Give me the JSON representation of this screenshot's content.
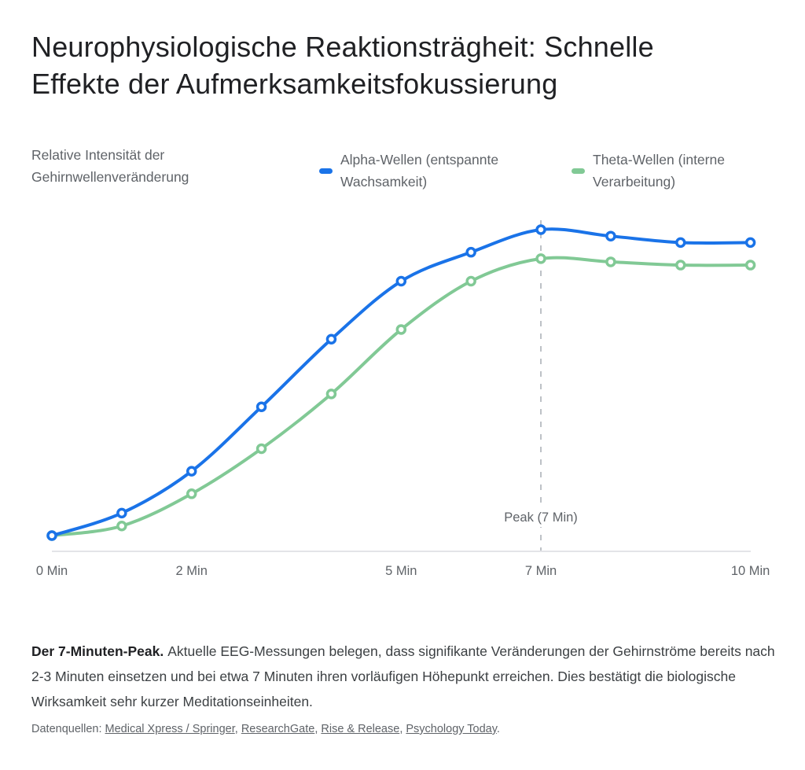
{
  "page": {
    "title": "Neurophysiologische Reaktionsträgheit: Schnelle Effekte der Aufmerksamkeitsfokussierung"
  },
  "chart": {
    "ylabel": "Relative Intensität der Gehirnwellenveränderung",
    "legend": [
      {
        "label": "Alpha-Wellen (entspannte Wachsamkeit)",
        "color": "#1a73e8"
      },
      {
        "label": "Theta-Wellen (interne Verarbeitung)",
        "color": "#81c995"
      }
    ]
  },
  "chart_data": {
    "type": "line",
    "title": "Neurophysiologische Reaktionsträgheit: Schnelle Effekte der Aufmerksamkeitsfokussierung",
    "ylabel": "Relative Intensität der Gehirnwellenveränderung",
    "xlabel": "",
    "x_unit": "Min",
    "x": [
      0,
      1,
      2,
      3,
      4,
      5,
      6,
      7,
      8,
      9,
      10
    ],
    "xlim": [
      0,
      10
    ],
    "ylim": [
      0,
      105
    ],
    "grid": false,
    "legend_position": "top",
    "x_ticks": [
      {
        "value": 0,
        "label": "0 Min"
      },
      {
        "value": 2,
        "label": "2 Min"
      },
      {
        "value": 5,
        "label": "5 Min"
      },
      {
        "value": 7,
        "label": "7 Min"
      },
      {
        "value": 10,
        "label": "10 Min"
      }
    ],
    "series": [
      {
        "name": "Theta-Wellen (interne Verarbeitung)",
        "color": "#81c995",
        "values": [
          5,
          8,
          18,
          32,
          49,
          69,
          84,
          91,
          90,
          89,
          89
        ]
      },
      {
        "name": "Alpha-Wellen (entspannte Wachsamkeit)",
        "color": "#1a73e8",
        "values": [
          5,
          12,
          25,
          45,
          66,
          84,
          93,
          100,
          98,
          96,
          96
        ]
      }
    ],
    "annotation": {
      "label": "Peak (7 Min)",
      "x": 7
    }
  },
  "caption": {
    "lead": "Der 7-Minuten-Peak.",
    "text": "Aktuelle EEG-Messungen belegen, dass signifikante Veränderungen der Gehirnströme bereits nach 2-3 Minuten einsetzen und bei etwa 7 Minuten ihren vorläufigen Höhepunkt erreichen. Dies bestätigt die biologische Wirksamkeit sehr kurzer Meditationseinheiten."
  },
  "sources": {
    "prefix": "Datenquellen:",
    "links": [
      "Medical Xpress / Springer",
      "ResearchGate",
      "Rise & Release",
      "Psychology Today"
    ],
    "separator": ", ",
    "suffix": "."
  },
  "palette": {
    "alpha_blue": "#1a73e8",
    "theta_green": "#81c995",
    "marker_fill": "#ffffff",
    "axis_line": "#dadce0",
    "dashed_line": "#bdc1c6",
    "title_text": "#202124",
    "secondary_text": "#5f6368",
    "body_text": "#3c4043"
  }
}
